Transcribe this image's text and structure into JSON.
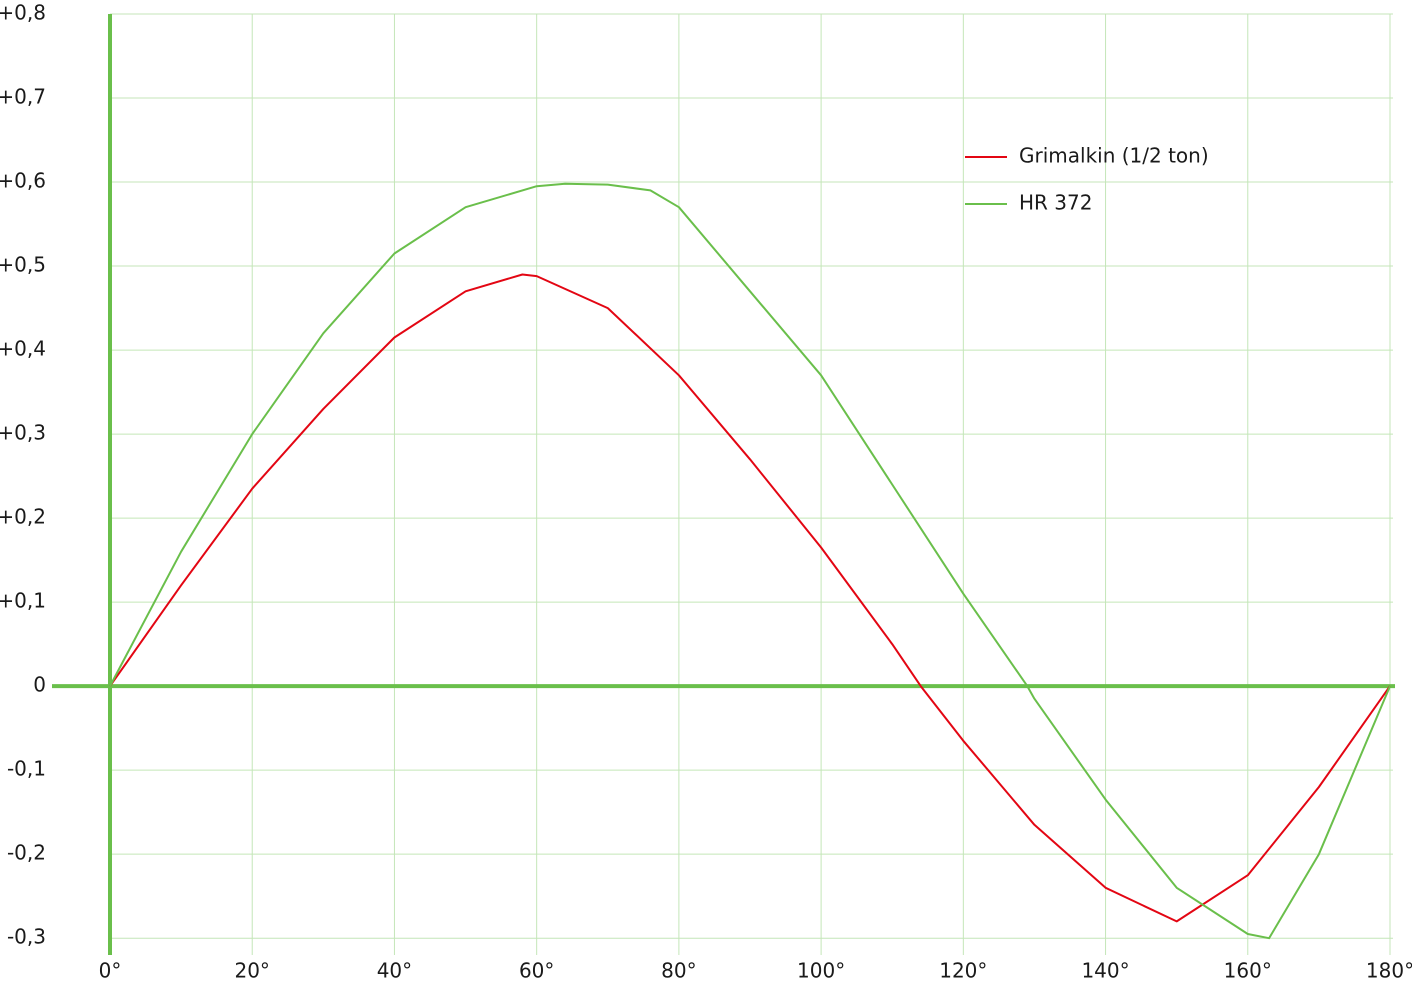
{
  "chart_data": {
    "type": "line",
    "series": [
      {
        "name": "Grimalkin (1/2 ton)",
        "color": "#e30613",
        "x": [
          0,
          10,
          20,
          30,
          40,
          50,
          58,
          60,
          70,
          80,
          90,
          100,
          110,
          114,
          120,
          130,
          140,
          150,
          160,
          170,
          180
        ],
        "values": [
          0,
          0.12,
          0.235,
          0.33,
          0.415,
          0.47,
          0.49,
          0.488,
          0.45,
          0.37,
          0.27,
          0.165,
          0.05,
          0,
          -0.065,
          -0.165,
          -0.24,
          -0.28,
          -0.225,
          -0.12,
          0
        ]
      },
      {
        "name": "HR 372",
        "color": "#6abf4b",
        "x": [
          0,
          10,
          20,
          30,
          40,
          50,
          60,
          64,
          70,
          76,
          80,
          90,
          100,
          110,
          120,
          129,
          130,
          140,
          150,
          160,
          163,
          170,
          180
        ],
        "values": [
          0,
          0.16,
          0.3,
          0.42,
          0.515,
          0.57,
          0.595,
          0.598,
          0.597,
          0.59,
          0.57,
          0.47,
          0.37,
          0.24,
          0.11,
          0,
          -0.015,
          -0.135,
          -0.24,
          -0.295,
          -0.3,
          -0.2,
          0
        ]
      }
    ],
    "xlim": [
      0,
      180
    ],
    "xticks": [
      {
        "value": 0,
        "label": "0°"
      },
      {
        "value": 20,
        "label": "20°"
      },
      {
        "value": 40,
        "label": "40°"
      },
      {
        "value": 60,
        "label": "60°"
      },
      {
        "value": 80,
        "label": "80°"
      },
      {
        "value": 100,
        "label": "100°"
      },
      {
        "value": 120,
        "label": "120°"
      },
      {
        "value": 140,
        "label": "140°"
      },
      {
        "value": 160,
        "label": "160°"
      },
      {
        "value": 180,
        "label": "180°"
      }
    ],
    "ylim": [
      -0.32,
      0.8
    ],
    "yticks": [
      {
        "value": 0.8,
        "label": "+0,8"
      },
      {
        "value": 0.7,
        "label": "+0,7"
      },
      {
        "value": 0.6,
        "label": "+0,6"
      },
      {
        "value": 0.5,
        "label": "+0,5"
      },
      {
        "value": 0.4,
        "label": "+0,4"
      },
      {
        "value": 0.3,
        "label": "+0,3"
      },
      {
        "value": 0.2,
        "label": "+0,2"
      },
      {
        "value": 0.1,
        "label": "+0,1"
      },
      0,
      {
        "value": -0.1,
        "label": "-0,1"
      },
      {
        "value": -0.2,
        "label": "-0,2"
      },
      {
        "value": -0.3,
        "label": "-0,3"
      }
    ],
    "grid": true,
    "legend": "upper-right"
  }
}
